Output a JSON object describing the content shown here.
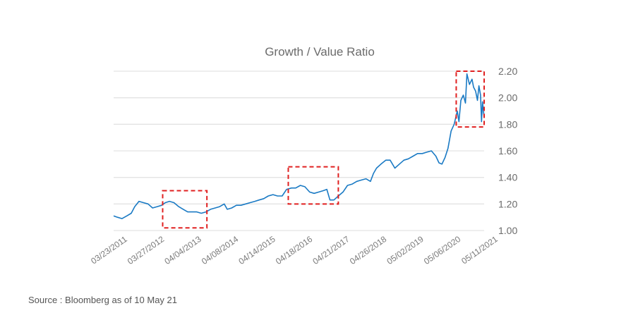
{
  "chart_data": {
    "type": "line",
    "title": "Growth / Value Ratio",
    "xlabel": "",
    "ylabel": "",
    "x_tick_labels": [
      "03/23/2011",
      "03/27/2012",
      "04/04/2013",
      "04/08/2014",
      "04/14/2015",
      "04/18/2016",
      "04/21/2017",
      "04/26/2018",
      "05/02/2019",
      "05/06/2020",
      "05/11/2021"
    ],
    "y_tick_labels": [
      "1.00",
      "1.20",
      "1.40",
      "1.60",
      "1.80",
      "2.00",
      "2.20"
    ],
    "ylim": [
      1.0,
      2.2
    ],
    "xlim": [
      "2011-03-23",
      "2021-05-11"
    ],
    "y_axis_position": "right",
    "grid": true,
    "line_color": "#1a7ac4",
    "highlight_color": "#e02020",
    "series": [
      {
        "x": [
          "2011-03-23",
          "2011-05-01",
          "2011-06-15",
          "2011-08-01",
          "2011-09-15",
          "2011-10-20",
          "2011-12-01",
          "2012-01-15",
          "2012-03-01",
          "2012-04-15",
          "2012-06-01",
          "2012-07-15",
          "2012-08-20",
          "2012-10-01",
          "2012-11-15",
          "2013-01-01",
          "2013-02-15",
          "2013-04-01",
          "2013-05-15",
          "2013-07-01",
          "2013-08-15",
          "2013-10-01",
          "2013-11-15",
          "2014-01-01",
          "2014-02-15",
          "2014-04-01",
          "2014-05-01",
          "2014-06-15",
          "2014-08-01",
          "2014-09-15",
          "2014-11-01",
          "2014-12-15",
          "2015-02-01",
          "2015-03-15",
          "2015-05-01",
          "2015-06-15",
          "2015-08-01",
          "2015-09-15",
          "2015-11-01",
          "2015-12-15",
          "2016-02-01",
          "2016-03-15",
          "2016-05-01",
          "2016-06-15",
          "2016-08-01",
          "2016-09-15",
          "2016-11-01",
          "2016-12-15",
          "2017-01-20",
          "2017-02-20",
          "2017-04-01",
          "2017-05-15",
          "2017-07-01",
          "2017-08-15",
          "2017-10-01",
          "2017-11-15",
          "2018-01-01",
          "2018-02-15",
          "2018-04-01",
          "2018-05-01",
          "2018-06-01",
          "2018-07-15",
          "2018-09-01",
          "2018-10-15",
          "2018-12-01",
          "2019-01-15",
          "2019-03-01",
          "2019-04-15",
          "2019-06-01",
          "2019-07-15",
          "2019-09-01",
          "2019-10-15",
          "2019-12-01",
          "2020-01-15",
          "2020-02-15",
          "2020-03-15",
          "2020-04-15",
          "2020-05-15",
          "2020-06-15",
          "2020-07-15",
          "2020-08-15",
          "2020-09-01",
          "2020-09-20",
          "2020-10-15",
          "2020-11-05",
          "2020-11-20",
          "2020-12-15",
          "2021-01-10",
          "2021-01-25",
          "2021-02-15",
          "2021-03-05",
          "2021-03-20",
          "2021-04-05",
          "2021-04-15",
          "2021-04-25",
          "2021-05-11"
        ],
        "y": [
          1.11,
          1.1,
          1.09,
          1.11,
          1.13,
          1.18,
          1.22,
          1.21,
          1.2,
          1.17,
          1.18,
          1.19,
          1.21,
          1.22,
          1.21,
          1.18,
          1.16,
          1.14,
          1.14,
          1.14,
          1.13,
          1.14,
          1.16,
          1.17,
          1.18,
          1.2,
          1.16,
          1.17,
          1.19,
          1.19,
          1.2,
          1.21,
          1.22,
          1.23,
          1.24,
          1.26,
          1.27,
          1.26,
          1.26,
          1.31,
          1.32,
          1.32,
          1.34,
          1.33,
          1.29,
          1.28,
          1.29,
          1.3,
          1.31,
          1.23,
          1.23,
          1.26,
          1.29,
          1.34,
          1.35,
          1.37,
          1.38,
          1.39,
          1.37,
          1.43,
          1.47,
          1.5,
          1.53,
          1.53,
          1.47,
          1.5,
          1.53,
          1.54,
          1.56,
          1.58,
          1.58,
          1.59,
          1.6,
          1.56,
          1.51,
          1.5,
          1.55,
          1.62,
          1.75,
          1.8,
          1.9,
          1.82,
          1.98,
          2.02,
          1.96,
          2.18,
          2.1,
          2.14,
          2.08,
          2.05,
          1.98,
          2.09,
          2.02,
          1.82,
          1.97,
          1.85
        ]
      }
    ],
    "highlight_boxes": [
      {
        "x": [
          "2012-07-25",
          "2013-10-10"
        ],
        "y": [
          1.02,
          1.3
        ]
      },
      {
        "x": [
          "2016-01-01",
          "2017-05-15"
        ],
        "y": [
          1.2,
          1.48
        ]
      },
      {
        "x": [
          "2020-08-05",
          "2021-05-11"
        ],
        "y": [
          1.78,
          2.2
        ]
      }
    ]
  },
  "footer": {
    "source": "Source : Bloomberg as of 10 May 21"
  }
}
